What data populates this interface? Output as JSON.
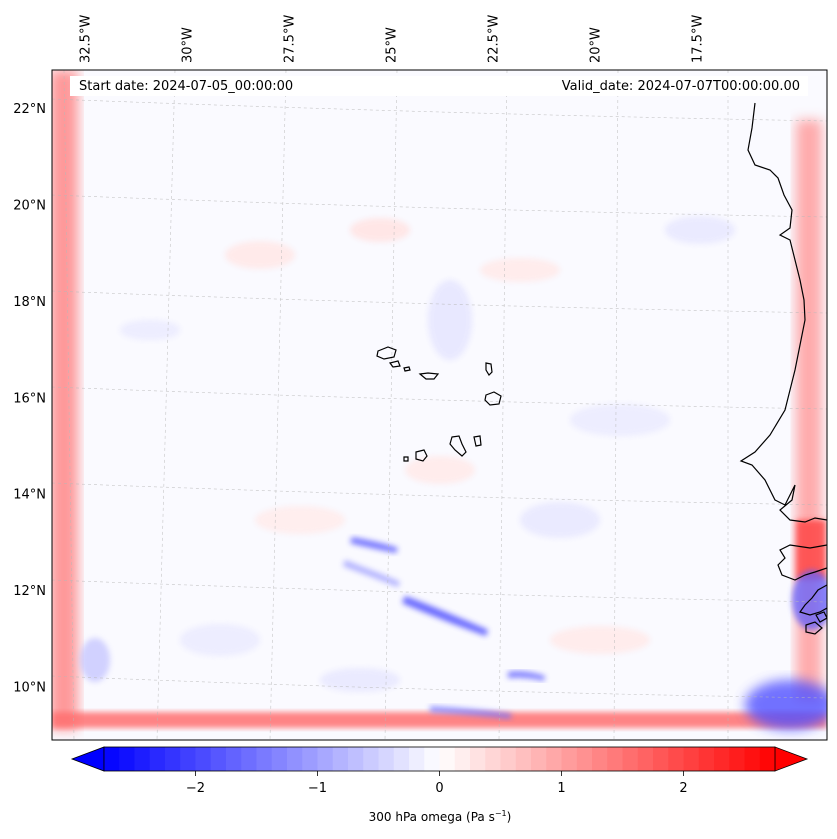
{
  "chart_data": {
    "type": "heatmap",
    "title": "",
    "variable_label": "300 hPa omega (Pa s",
    "variable_label_exp": "−1",
    "variable_label_close": ")",
    "start_date_label": "Start date: 2024-07-05_00:00:00",
    "valid_date_label": "Valid_date: 2024-07-07T00:00:00.00",
    "lon_range": [
      -33.3,
      -14.3
    ],
    "lat_range": [
      8.9,
      22.8
    ],
    "lon_ticks": [
      {
        "value": -32.5,
        "label": "32.5°W"
      },
      {
        "value": -30.0,
        "label": "30°W"
      },
      {
        "value": -27.5,
        "label": "27.5°W"
      },
      {
        "value": -25.0,
        "label": "25°W"
      },
      {
        "value": -22.5,
        "label": "22.5°W"
      },
      {
        "value": -20.0,
        "label": "20°W"
      },
      {
        "value": -17.5,
        "label": "17.5°W"
      }
    ],
    "lat_ticks": [
      {
        "value": 10,
        "label": "10°N"
      },
      {
        "value": 12,
        "label": "12°N"
      },
      {
        "value": 14,
        "label": "14°N"
      },
      {
        "value": 16,
        "label": "16°N"
      },
      {
        "value": 18,
        "label": "18°N"
      },
      {
        "value": 20,
        "label": "20°N"
      },
      {
        "value": 22,
        "label": "22°N"
      }
    ],
    "colorbar": {
      "cmap": "bwr",
      "vmin": -2.75,
      "vmax": 2.75,
      "extend": "both",
      "ticks": [
        {
          "value": -2,
          "label": "−2"
        },
        {
          "value": -1,
          "label": "−1"
        },
        {
          "value": 0,
          "label": "0"
        },
        {
          "value": 1,
          "label": "1"
        },
        {
          "value": 2,
          "label": "2"
        }
      ]
    },
    "field_features": [
      {
        "name": "western-boundary-ascent",
        "lon": [
          -33.2,
          -32.6
        ],
        "lat": [
          9.3,
          22.5
        ],
        "value": 1.4
      },
      {
        "name": "southern-boundary-ascent",
        "lon": [
          -32.6,
          -14.3
        ],
        "lat": [
          9.1,
          9.5
        ],
        "value": 1.2
      },
      {
        "name": "eastern-boundary-ascent",
        "lon": [
          -15.2,
          -14.4
        ],
        "lat": [
          9.5,
          22.4
        ],
        "value": 1.2
      },
      {
        "name": "descent-band-a",
        "lon": [
          -24.5,
          -21.5
        ],
        "lat": [
          11.0,
          12.0
        ],
        "value": -1.3
      },
      {
        "name": "descent-band-b",
        "lon": [
          -25.5,
          -24.0
        ],
        "lat": [
          12.6,
          13.2
        ],
        "value": -1.0
      },
      {
        "name": "descent-band-c",
        "lon": [
          -22.0,
          -20.8
        ],
        "lat": [
          10.0,
          10.4
        ],
        "value": -1.0
      },
      {
        "name": "descent-patch-se",
        "lon": [
          -17.0,
          -14.3
        ],
        "lat": [
          9.0,
          10.5
        ],
        "value": -1.6
      },
      {
        "name": "descent-patch-e",
        "lon": [
          -15.5,
          -14.3
        ],
        "lat": [
          11.2,
          12.5
        ],
        "value": -1.2
      },
      {
        "name": "ascent-coast-e",
        "lon": [
          -15.0,
          -14.3
        ],
        "lat": [
          12.5,
          13.5
        ],
        "value": 1.3
      }
    ]
  }
}
